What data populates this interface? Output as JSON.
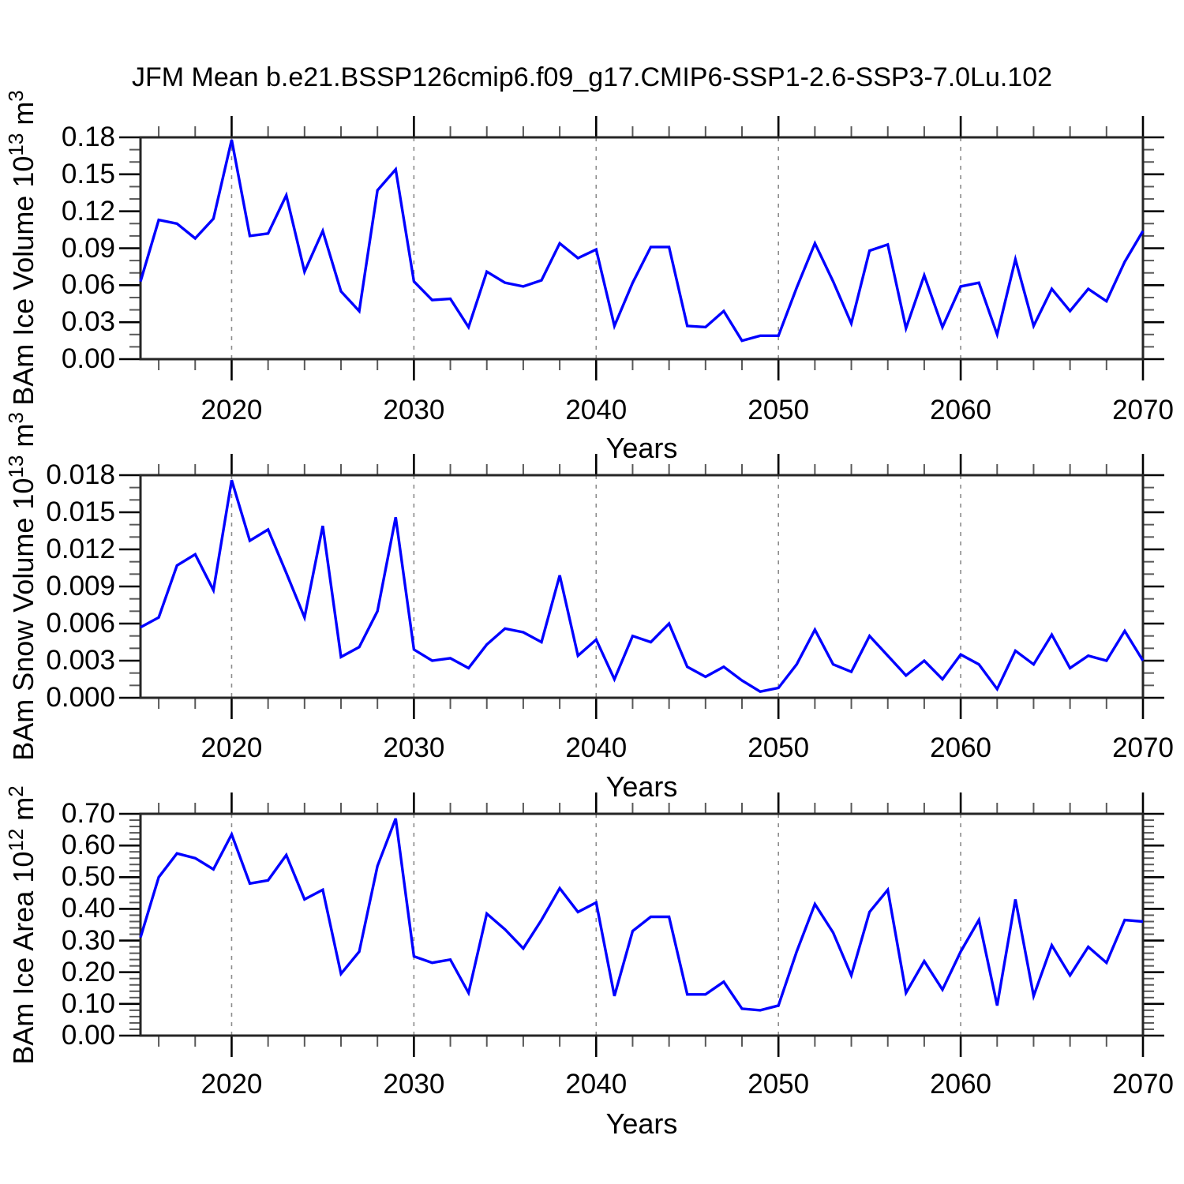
{
  "title": "JFM Mean b.e21.BSSP126cmip6.f09_g17.CMIP6-SSP1-2.6-SSP3-7.0Lu.102",
  "colors": {
    "line": "#0000ff",
    "axis": "#262626",
    "gridline": "#8c8c8c",
    "major_tick": "#000000",
    "minor_tick": "#595959",
    "text": "#000000",
    "background": "#ffffff"
  },
  "chart_data": {
    "type": "line",
    "xlabel": "Years",
    "x_years": [
      2015,
      2016,
      2017,
      2018,
      2019,
      2020,
      2021,
      2022,
      2023,
      2024,
      2025,
      2026,
      2027,
      2028,
      2029,
      2030,
      2031,
      2032,
      2033,
      2034,
      2035,
      2036,
      2037,
      2038,
      2039,
      2040,
      2041,
      2042,
      2043,
      2044,
      2045,
      2046,
      2047,
      2048,
      2049,
      2050,
      2051,
      2052,
      2053,
      2054,
      2055,
      2056,
      2057,
      2058,
      2059,
      2060,
      2061,
      2062,
      2063,
      2064,
      2065,
      2066,
      2067,
      2068,
      2069,
      2070
    ],
    "xlim": [
      2015,
      2070
    ],
    "x_major_tick_years": [
      2020,
      2030,
      2040,
      2050,
      2060,
      2070
    ],
    "x_major_tick_labels": [
      "2020",
      "2030",
      "2040",
      "2050",
      "2060",
      "2070"
    ],
    "x_gridline_years": [
      2020,
      2030,
      2040,
      2050,
      2060
    ],
    "x_minor_tick_step": 2,
    "grid": "vertical-dashed",
    "legend": "none",
    "panels": [
      {
        "id": "ice-volume",
        "ylabel": {
          "text1": "BAm Ice Volume 10",
          "sup1": "13",
          "text2": " m",
          "sup2": "3"
        },
        "ylim": [
          0,
          0.18
        ],
        "y_major_step": 0.03,
        "y_minor_divisions": 3,
        "ytick_labels": [
          "0.00",
          "0.03",
          "0.06",
          "0.09",
          "0.12",
          "0.15",
          "0.18"
        ],
        "values": [
          0.063,
          0.113,
          0.11,
          0.098,
          0.114,
          0.178,
          0.1,
          0.102,
          0.133,
          0.071,
          0.104,
          0.055,
          0.039,
          0.137,
          0.154,
          0.063,
          0.048,
          0.049,
          0.026,
          0.071,
          0.062,
          0.059,
          0.064,
          0.094,
          0.082,
          0.089,
          0.027,
          0.062,
          0.091,
          0.091,
          0.027,
          0.026,
          0.039,
          0.015,
          0.019,
          0.019,
          0.058,
          0.094,
          0.063,
          0.029,
          0.088,
          0.093,
          0.025,
          0.068,
          0.026,
          0.059,
          0.062,
          0.02,
          0.081,
          0.027,
          0.057,
          0.039,
          0.057,
          0.047,
          0.079,
          0.104
        ]
      },
      {
        "id": "snow-volume",
        "ylabel": {
          "text1": "BAm Snow Volume 10",
          "sup1": "13",
          "text2": " m",
          "sup2": "3"
        },
        "ylim": [
          0,
          0.018
        ],
        "y_major_step": 0.003,
        "y_minor_divisions": 3,
        "ytick_labels": [
          "0.000",
          "0.003",
          "0.006",
          "0.009",
          "0.012",
          "0.015",
          "0.018"
        ],
        "values": [
          0.0057,
          0.0065,
          0.0107,
          0.0116,
          0.0087,
          0.0176,
          0.0127,
          0.0136,
          0.0101,
          0.0065,
          0.0139,
          0.0033,
          0.0041,
          0.007,
          0.0146,
          0.0039,
          0.003,
          0.0032,
          0.0024,
          0.0043,
          0.0056,
          0.0053,
          0.0045,
          0.0099,
          0.0034,
          0.0047,
          0.0015,
          0.005,
          0.0045,
          0.006,
          0.0025,
          0.0017,
          0.0025,
          0.0014,
          0.0005,
          0.0008,
          0.0027,
          0.0055,
          0.0027,
          0.0021,
          0.005,
          0.0034,
          0.0018,
          0.003,
          0.0015,
          0.0035,
          0.0027,
          0.0007,
          0.0038,
          0.0027,
          0.0051,
          0.0024,
          0.0034,
          0.003,
          0.0054,
          0.003
        ]
      },
      {
        "id": "ice-area",
        "ylabel": {
          "text1": "BAm Ice Area 10",
          "sup1": "12",
          "text2": " m",
          "sup2": "2"
        },
        "ylim": [
          0,
          0.7
        ],
        "y_major_step": 0.1,
        "y_minor_divisions": 5,
        "ytick_labels": [
          "0.00",
          "0.10",
          "0.20",
          "0.30",
          "0.40",
          "0.50",
          "0.60",
          "0.70"
        ],
        "values": [
          0.31,
          0.5,
          0.575,
          0.56,
          0.525,
          0.635,
          0.48,
          0.49,
          0.57,
          0.43,
          0.46,
          0.195,
          0.265,
          0.535,
          0.685,
          0.25,
          0.23,
          0.24,
          0.135,
          0.385,
          0.335,
          0.275,
          0.365,
          0.465,
          0.39,
          0.42,
          0.125,
          0.33,
          0.375,
          0.375,
          0.13,
          0.13,
          0.17,
          0.085,
          0.08,
          0.095,
          0.265,
          0.415,
          0.325,
          0.19,
          0.39,
          0.46,
          0.135,
          0.235,
          0.145,
          0.265,
          0.365,
          0.095,
          0.43,
          0.125,
          0.285,
          0.19,
          0.28,
          0.23,
          0.365,
          0.36
        ]
      }
    ]
  }
}
